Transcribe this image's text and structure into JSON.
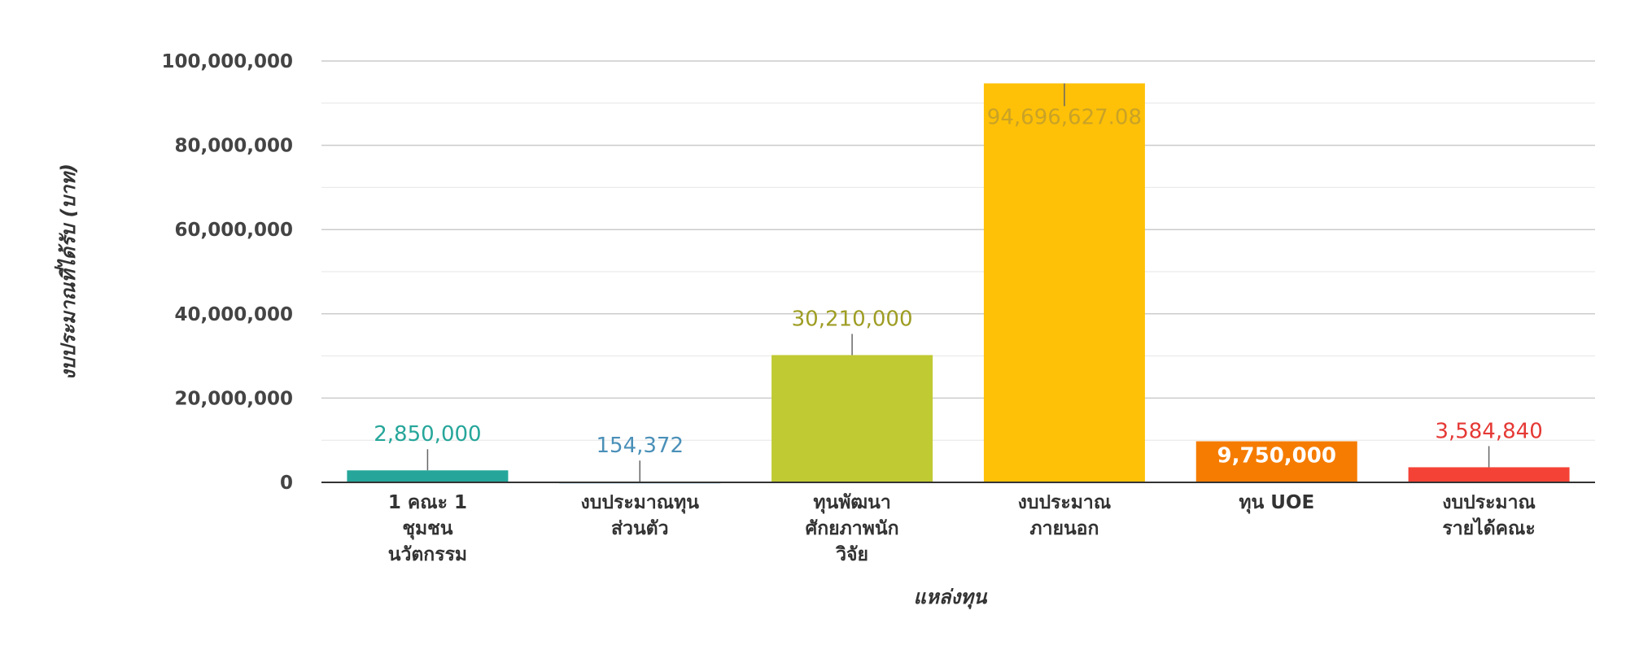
{
  "chart_data": {
    "type": "bar",
    "xlabel": "แหล่งทุน",
    "ylabel": "งบประมาณที่ได้รับ (บาท)",
    "ylim": [
      0,
      100000000
    ],
    "yticks": [
      0,
      20000000,
      40000000,
      60000000,
      80000000,
      100000000
    ],
    "ytick_labels": [
      "0",
      "20,000,000",
      "40,000,000",
      "60,000,000",
      "80,000,000",
      "100,000,000"
    ],
    "grid": true,
    "categories": [
      [
        "1 คณะ 1",
        "ชุมชน",
        "นวัตกรรม"
      ],
      [
        "งบประมาณทุน",
        "ส่วนตัว"
      ],
      [
        "ทุนพัฒนา",
        "ศักยภาพนัก",
        "วิจัย"
      ],
      [
        "งบประมาณ",
        "ภายนอก"
      ],
      [
        "ทุน UOE"
      ],
      [
        "งบประมาณ",
        "รายได้คณะ"
      ]
    ],
    "values": [
      2850000,
      154372,
      30210000,
      94696627.08,
      9750000,
      3584840
    ],
    "value_labels": [
      "2,850,000",
      "154,372",
      "30,210,000",
      "94,696,627.08",
      "9,750,000",
      "3,584,840"
    ],
    "colors": [
      "#26a69a",
      "#4aa3c8",
      "#c0ca33",
      "#ffc107",
      "#f57c00",
      "#f44336"
    ],
    "label_colors": [
      "#26a69a",
      "#4a90b8",
      "#9e9d24",
      "#c9a227",
      "#ffffff",
      "#e53935"
    ]
  }
}
